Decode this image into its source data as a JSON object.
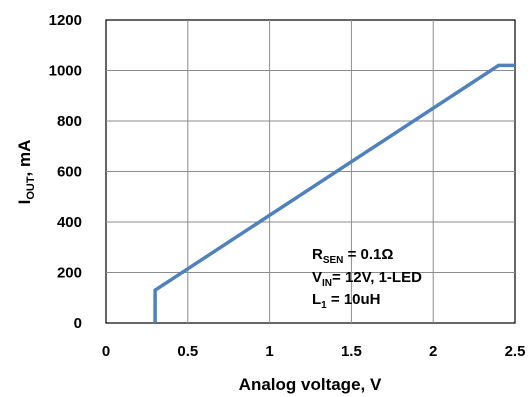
{
  "chart_data": {
    "type": "line",
    "title": "",
    "xlabel": "Analog voltage, V",
    "ylabel": {
      "main": "I",
      "sub": "OUT",
      "rest": ", mA"
    },
    "xlim": [
      0,
      2.5
    ],
    "ylim": [
      0,
      1200
    ],
    "x_ticks": [
      "0",
      "0.5",
      "1",
      "1.5",
      "2",
      "2.5"
    ],
    "y_ticks": [
      "0",
      "200",
      "400",
      "600",
      "800",
      "1000",
      "1200"
    ],
    "grid": true,
    "color": "#4F81BD",
    "series": [
      {
        "x": [
          0.3,
          0.3,
          2.4,
          2.5
        ],
        "y": [
          0,
          130,
          1020,
          1020
        ]
      }
    ],
    "annotation": [
      {
        "main": "R",
        "sub": "SEN",
        "rest": " = 0.1Ω"
      },
      {
        "main": "V",
        "sub": "IN",
        "rest": "= 12V, 1-LED"
      },
      {
        "main": "L",
        "sub": "1",
        "rest": " = 10uH"
      }
    ]
  }
}
